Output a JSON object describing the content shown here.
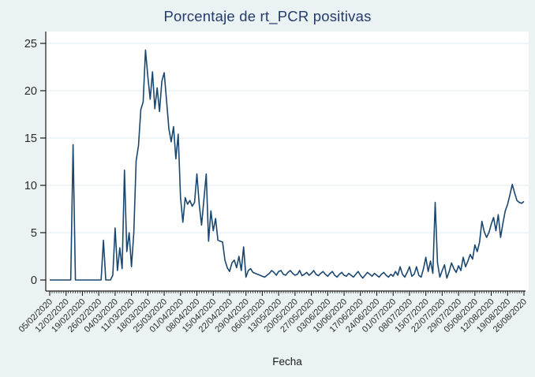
{
  "figure": {
    "title": "Porcentaje de rt_PCR positivas",
    "xlabel": "Fecha"
  },
  "colors": {
    "background": "#eaf2f3",
    "plot_bg": "#ffffff",
    "grid": "#dfe9ed",
    "axis": "#1a1a1a",
    "tick_text": "#2a2a2a",
    "title": "#243b6b",
    "line": "#1a476f"
  },
  "chart_data": {
    "type": "line",
    "title": "Porcentaje de rt_PCR positivas",
    "xlabel": "Fecha",
    "ylabel": "",
    "ylim": [
      0,
      25
    ],
    "yticks": [
      0,
      5,
      10,
      15,
      20,
      25
    ],
    "grid": true,
    "legend": false,
    "line_color": "#1a476f",
    "x_start_date": "05/02/2020",
    "x_end_date": "26/08/2020",
    "x_frequency": "daily",
    "x_tick_interval_days": 7,
    "x_tick_labels": [
      "05/02/2020",
      "12/02/2020",
      "19/02/2020",
      "26/02/2020",
      "04/03/2020",
      "11/03/2020",
      "18/03/2020",
      "25/03/2020",
      "01/04/2020",
      "08/04/2020",
      "15/04/2020",
      "22/04/2020",
      "29/04/2020",
      "06/05/2020",
      "13/05/2020",
      "20/05/2020",
      "27/05/2020",
      "03/06/2020",
      "10/06/2020",
      "17/06/2020",
      "24/06/2020",
      "01/07/2020",
      "08/07/2020",
      "15/07/2020",
      "22/07/2020",
      "29/07/2020",
      "05/08/2020",
      "12/08/2020",
      "19/08/2020",
      "26/08/2020"
    ],
    "series": [
      {
        "name": "Porcentaje de rt_PCR positivas",
        "values": [
          0,
          0,
          0,
          0,
          0,
          0,
          0,
          0,
          0,
          0,
          14.3,
          0,
          0,
          0,
          0,
          0,
          0,
          0,
          0,
          0,
          0,
          0,
          0,
          4.2,
          0,
          0,
          0,
          0.5,
          5.5,
          1.0,
          3.4,
          1.2,
          11.6,
          3.0,
          5.0,
          1.4,
          5.0,
          12.6,
          14.2,
          18.0,
          18.8,
          24.3,
          21.5,
          19.1,
          22.0,
          18.1,
          20.3,
          17.8,
          21.0,
          21.9,
          19.0,
          16.0,
          14.6,
          16.2,
          12.8,
          15.4,
          8.7,
          6.1,
          8.7,
          8.0,
          8.4,
          7.8,
          8.2,
          11.2,
          8.0,
          5.8,
          8.5,
          11.2,
          4.1,
          7.3,
          5.2,
          6.5,
          4.2,
          4.1,
          4.0,
          2.1,
          1.3,
          0.9,
          1.8,
          2.1,
          1.3,
          2.5,
          1.0,
          3.5,
          0.3,
          1.0,
          1.2,
          0.8,
          0.7,
          0.6,
          0.5,
          0.4,
          0.3,
          0.5,
          0.7,
          1.0,
          0.8,
          0.5,
          0.9,
          1.0,
          0.6,
          0.5,
          0.8,
          1.0,
          0.7,
          0.5,
          0.6,
          1.0,
          0.45,
          0.6,
          0.8,
          0.5,
          0.7,
          1.0,
          0.6,
          0.45,
          0.7,
          0.9,
          0.6,
          0.4,
          0.7,
          0.9,
          0.5,
          0.3,
          0.6,
          0.8,
          0.5,
          0.4,
          0.7,
          0.5,
          0.3,
          0.6,
          0.9,
          0.5,
          0.2,
          0.5,
          0.8,
          0.6,
          0.4,
          0.7,
          0.5,
          0.3,
          0.6,
          0.8,
          0.5,
          0.3,
          0.6,
          0.4,
          0.9,
          0.5,
          1.4,
          0.6,
          0.3,
          0.8,
          1.4,
          0.4,
          0.6,
          1.4,
          0.5,
          0.3,
          1.2,
          2.4,
          0.9,
          2.0,
          0.7,
          8.2,
          1.8,
          0.3,
          1.0,
          1.6,
          0.2,
          0.9,
          1.8,
          1.2,
          0.8,
          1.5,
          1.0,
          2.4,
          1.4,
          2.0,
          2.7,
          2.2,
          3.7,
          3.0,
          4.0,
          6.2,
          5.1,
          4.5,
          5.0,
          5.9,
          6.6,
          5.2,
          6.9,
          4.5,
          6.0,
          7.3,
          8.0,
          9.0,
          10.1,
          9.2,
          8.4,
          8.2,
          8.1,
          8.3
        ]
      }
    ]
  }
}
